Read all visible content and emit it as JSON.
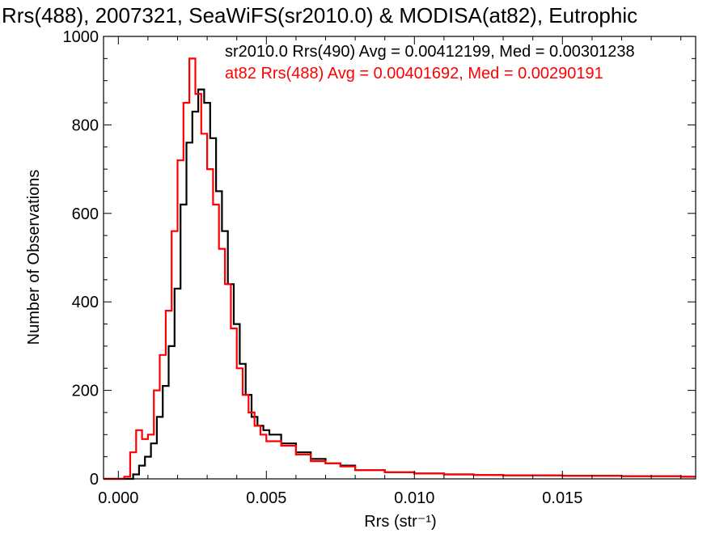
{
  "chart_data": {
    "type": "line",
    "title": "Rrs(488), 2007321, SeaWiFS(sr2010.0) & MODISA(at82), Eutrophic",
    "xlabel": "Rrs (str⁻¹)",
    "ylabel": "Number of Observations",
    "xlim": [
      -0.0005,
      0.0195
    ],
    "ylim": [
      0,
      1000
    ],
    "x_ticks": [
      0.0,
      0.005,
      0.01,
      0.015
    ],
    "x_tick_labels": [
      "0.000",
      "0.005",
      "0.010",
      "0.015"
    ],
    "y_ticks": [
      0,
      200,
      400,
      600,
      800,
      1000
    ],
    "y_tick_labels": [
      "0",
      "200",
      "400",
      "600",
      "800",
      "1000"
    ],
    "grid": false,
    "legend": "top-right",
    "series": [
      {
        "name": "sr2010.0 Rrs(490) Avg = 0.00412199, Med = 0.00301238",
        "color": "#000000",
        "x": [
          0.0003,
          0.0005,
          0.0007,
          0.0009,
          0.0011,
          0.0013,
          0.0015,
          0.0017,
          0.0019,
          0.0021,
          0.0023,
          0.0025,
          0.0027,
          0.0029,
          0.0031,
          0.0033,
          0.0035,
          0.0037,
          0.0039,
          0.0041,
          0.0043,
          0.0045,
          0.0047,
          0.0049,
          0.0051,
          0.0055,
          0.006,
          0.0065,
          0.007,
          0.0075,
          0.008,
          0.009,
          0.01,
          0.011,
          0.012,
          0.013,
          0.014,
          0.015,
          0.016,
          0.017,
          0.018,
          0.019
        ],
        "y": [
          0,
          10,
          30,
          50,
          80,
          140,
          210,
          300,
          430,
          620,
          760,
          830,
          880,
          850,
          770,
          650,
          560,
          440,
          350,
          260,
          190,
          140,
          120,
          110,
          100,
          80,
          60,
          45,
          35,
          30,
          20,
          15,
          12,
          10,
          9,
          8,
          8,
          7,
          7,
          6,
          6,
          5
        ]
      },
      {
        "name": "at82 Rrs(488) Avg = 0.00401692, Med = 0.00290191",
        "color": "#ff0000",
        "x": [
          0.0002,
          0.0004,
          0.0006,
          0.0008,
          0.001,
          0.0012,
          0.0014,
          0.0016,
          0.0018,
          0.002,
          0.0022,
          0.0024,
          0.0026,
          0.0028,
          0.003,
          0.0032,
          0.0034,
          0.0036,
          0.0038,
          0.004,
          0.0042,
          0.0044,
          0.0046,
          0.0048,
          0.005,
          0.0055,
          0.006,
          0.0065,
          0.007,
          0.0075,
          0.008,
          0.009,
          0.01,
          0.011,
          0.012,
          0.013,
          0.014,
          0.015,
          0.016,
          0.017,
          0.018,
          0.019
        ],
        "y": [
          5,
          60,
          110,
          90,
          100,
          200,
          280,
          380,
          560,
          720,
          850,
          950,
          870,
          780,
          700,
          620,
          520,
          440,
          340,
          250,
          190,
          150,
          120,
          100,
          85,
          75,
          55,
          40,
          35,
          28,
          20,
          15,
          12,
          10,
          9,
          8,
          8,
          7,
          7,
          6,
          6,
          5
        ]
      }
    ]
  }
}
